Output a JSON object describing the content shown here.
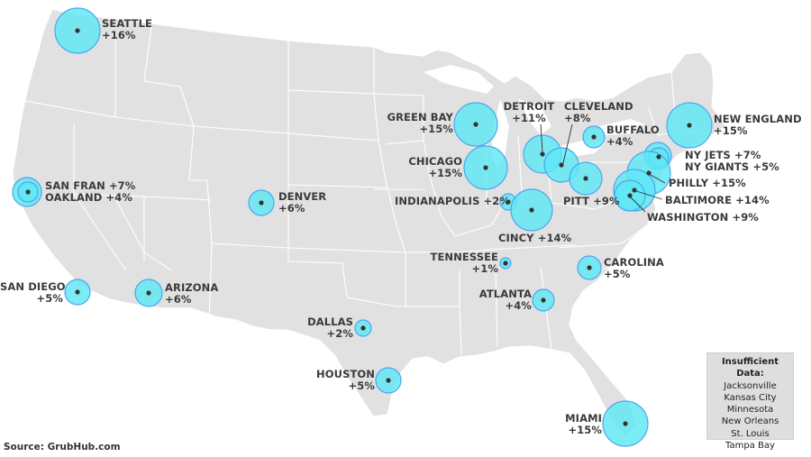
{
  "map": {
    "source": "Source: GrubHub.com",
    "bubble_fill": "#5ee8f4",
    "bubble_stroke": "#4aa6f0",
    "land_color": "#e1e1e1",
    "border_color": "#ffffff"
  },
  "markets": [
    {
      "name": "SEATTLE",
      "change": "+16%"
    },
    {
      "name": "GREEN BAY",
      "change": "+15%"
    },
    {
      "name": "DETROIT",
      "change": "+11%"
    },
    {
      "name": "CLEVELAND",
      "change": "+8%"
    },
    {
      "name": "BUFFALO",
      "change": "+4%"
    },
    {
      "name": "NEW ENGLAND",
      "change": "+15%"
    },
    {
      "name": "CHICAGO",
      "change": "+15%"
    },
    {
      "name": "NY JETS +7%",
      "change": ""
    },
    {
      "name": "NY GIANTS +5%",
      "change": ""
    },
    {
      "name": "SAN FRAN +7%",
      "change": ""
    },
    {
      "name": "OAKLAND +4%",
      "change": ""
    },
    {
      "name": "DENVER",
      "change": "+6%"
    },
    {
      "name": "INDIANAPOLIS +2%",
      "change": ""
    },
    {
      "name": "PITT +9%",
      "change": ""
    },
    {
      "name": "PHILLY +15%",
      "change": ""
    },
    {
      "name": "BALTIMORE +14%",
      "change": ""
    },
    {
      "name": "WASHINGTON +9%",
      "change": ""
    },
    {
      "name": "CINCY +14%",
      "change": ""
    },
    {
      "name": "TENNESSEE",
      "change": "+1%"
    },
    {
      "name": "CAROLINA",
      "change": "+5%"
    },
    {
      "name": "SAN DIEGO",
      "change": "+5%"
    },
    {
      "name": "ARIZONA",
      "change": "+6%"
    },
    {
      "name": "ATLANTA",
      "change": "+4%"
    },
    {
      "name": "DALLAS",
      "change": "+2%"
    },
    {
      "name": "HOUSTON",
      "change": "+5%"
    },
    {
      "name": "MIAMI",
      "change": "+15%"
    }
  ],
  "legend": {
    "title": "Insufficient Data:",
    "items": [
      "Jacksonville",
      "Kansas City",
      "Minnesota",
      "New Orleans",
      "St. Louis",
      "Tampa Bay"
    ]
  }
}
